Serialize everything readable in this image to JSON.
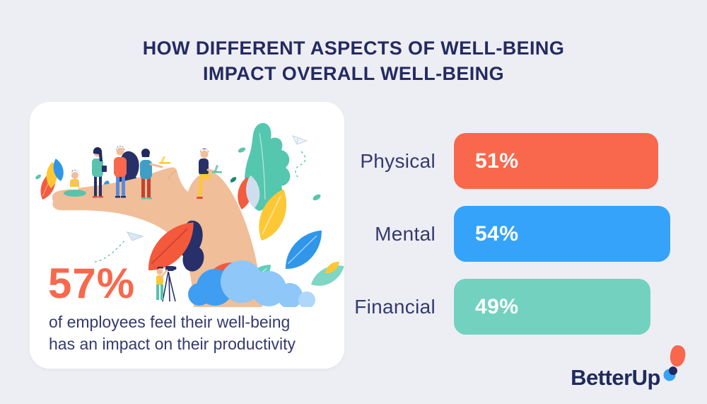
{
  "page": {
    "background": "#edeef3"
  },
  "title": {
    "line1": "HOW DIFFERENT ASPECTS OF WELL-BEING",
    "line2": "IMPACT OVERALL WELL-BEING",
    "color": "#252a63"
  },
  "stat_card": {
    "percent": "57%",
    "percent_color": "#f8684c",
    "line1": "of employees feel their well-being",
    "line2": "has an impact on their productivity",
    "text_color": "#343a6e",
    "illustration": "flat illustration of employees standing and sitting with laptops on a giant open hand, surrounded by colorful leaves, clouds and paper planes"
  },
  "chart_data": {
    "type": "bar",
    "orientation": "horizontal",
    "title": "",
    "categories": [
      "Physical",
      "Mental",
      "Financial"
    ],
    "values": [
      51,
      54,
      49
    ],
    "value_labels": [
      "51%",
      "54%",
      "49%"
    ],
    "bar_colors": [
      "#f9674d",
      "#35a3fa",
      "#72d2bf"
    ],
    "label_color": "#333a70",
    "value_text_color": "#ffffff",
    "xlim": [
      0,
      100
    ],
    "grid": false,
    "value_label_position": "inside-left"
  },
  "logo": {
    "text": "BetterUp",
    "text_color": "#1f2a5e",
    "mark": {
      "balloon_color": "#f9674d",
      "dot_color": "#1f2a5e",
      "circle_color": "#35a3fa"
    }
  }
}
